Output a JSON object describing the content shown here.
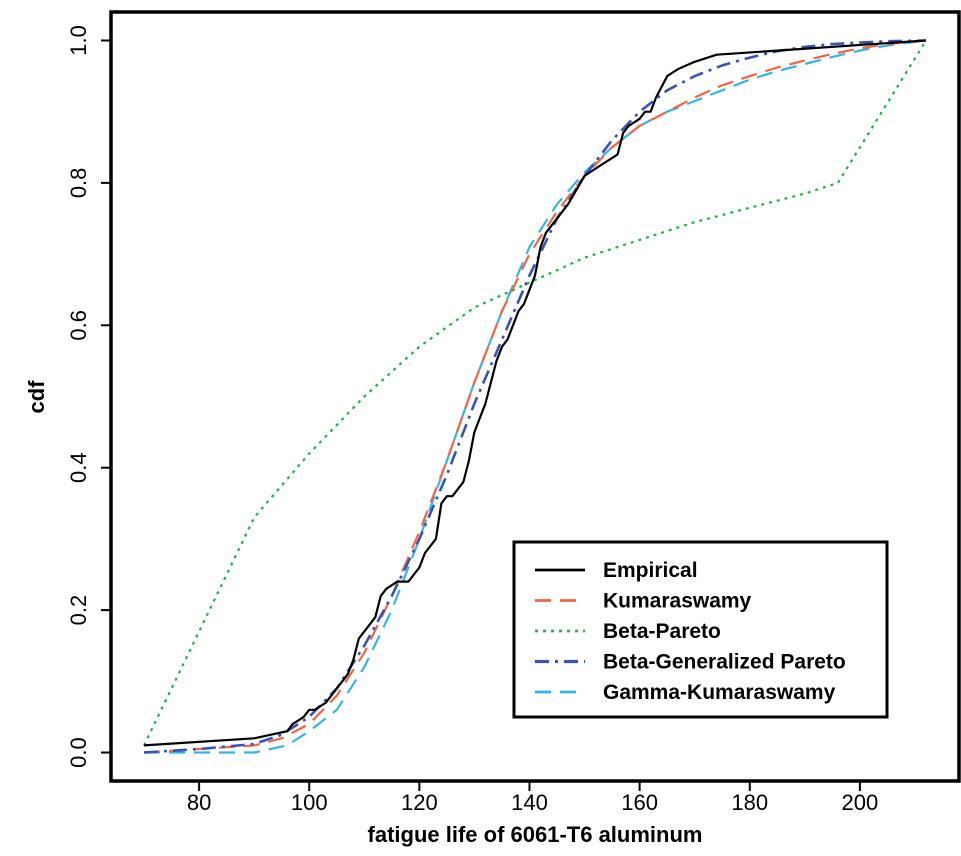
{
  "chart_data": {
    "type": "line",
    "title": "",
    "xlabel": "fatigue life of 6061-T6 aluminum",
    "ylabel": "cdf",
    "xlim": [
      64,
      218
    ],
    "ylim": [
      -0.04,
      1.04
    ],
    "x_ticks": [
      80,
      100,
      120,
      140,
      160,
      180,
      200
    ],
    "y_ticks": [
      0.0,
      0.2,
      0.4,
      0.6,
      0.8,
      1.0
    ],
    "y_tick_labels": [
      "0.0",
      "0.2",
      "0.4",
      "0.6",
      "0.8",
      "1.0"
    ],
    "grid": false,
    "legend_position": "bottom-right",
    "series": [
      {
        "name": "Empirical",
        "color": "#000000",
        "dash": "solid",
        "x": [
          70,
          90,
          96,
          97,
          99,
          100,
          101,
          103,
          104,
          105,
          107,
          108,
          109,
          112,
          113,
          114,
          116,
          118,
          119,
          120,
          121,
          122,
          123,
          124,
          125,
          126,
          127,
          128,
          129,
          130,
          131,
          132,
          133,
          134,
          135,
          136,
          137,
          138,
          139,
          140,
          141,
          142,
          143,
          145,
          147,
          150,
          152,
          154,
          156,
          157,
          158,
          160,
          161,
          162,
          163,
          165,
          167,
          170,
          174,
          212
        ],
        "y": [
          0.01,
          0.02,
          0.03,
          0.04,
          0.05,
          0.06,
          0.06,
          0.07,
          0.08,
          0.09,
          0.11,
          0.13,
          0.16,
          0.19,
          0.22,
          0.23,
          0.24,
          0.24,
          0.25,
          0.26,
          0.28,
          0.29,
          0.3,
          0.35,
          0.36,
          0.36,
          0.37,
          0.38,
          0.41,
          0.45,
          0.47,
          0.49,
          0.52,
          0.55,
          0.57,
          0.58,
          0.6,
          0.62,
          0.63,
          0.65,
          0.67,
          0.71,
          0.73,
          0.75,
          0.77,
          0.81,
          0.82,
          0.83,
          0.84,
          0.87,
          0.88,
          0.89,
          0.9,
          0.9,
          0.92,
          0.95,
          0.96,
          0.97,
          0.98,
          1.0
        ]
      },
      {
        "name": "Kumaraswamy",
        "color": "#f26544",
        "dash": "long-dash",
        "x": [
          70,
          80,
          90,
          95,
          100,
          105,
          110,
          115,
          120,
          125,
          130,
          135,
          140,
          145,
          150,
          155,
          160,
          165,
          170,
          175,
          180,
          185,
          190,
          195,
          200,
          205,
          212
        ],
        "y": [
          0.0,
          0.005,
          0.01,
          0.02,
          0.04,
          0.08,
          0.14,
          0.22,
          0.31,
          0.41,
          0.52,
          0.62,
          0.7,
          0.76,
          0.81,
          0.85,
          0.88,
          0.9,
          0.92,
          0.937,
          0.95,
          0.962,
          0.972,
          0.981,
          0.989,
          0.995,
          1.0
        ]
      },
      {
        "name": "Beta-Pareto",
        "color": "#22b14c",
        "dash": "dotted",
        "x": [
          70,
          90,
          100,
          110,
          120,
          130,
          140,
          150,
          160,
          170,
          180,
          190,
          196,
          212
        ],
        "y": [
          0.01,
          0.33,
          0.42,
          0.5,
          0.57,
          0.625,
          0.66,
          0.695,
          0.72,
          0.745,
          0.765,
          0.785,
          0.8,
          1.0
        ]
      },
      {
        "name": "Beta-Generalized Pareto",
        "color": "#3a53b5",
        "dash": "dash-dot",
        "x": [
          70,
          80,
          90,
          95,
          100,
          105,
          110,
          115,
          120,
          125,
          130,
          135,
          140,
          145,
          150,
          155,
          160,
          165,
          170,
          175,
          180,
          185,
          190,
          195,
          200,
          205,
          212
        ],
        "y": [
          0.0,
          0.005,
          0.012,
          0.025,
          0.05,
          0.09,
          0.15,
          0.22,
          0.3,
          0.39,
          0.49,
          0.58,
          0.67,
          0.75,
          0.81,
          0.86,
          0.9,
          0.93,
          0.95,
          0.965,
          0.976,
          0.985,
          0.991,
          0.995,
          0.997,
          0.999,
          1.0
        ]
      },
      {
        "name": "Gamma-Kumaraswamy",
        "color": "#35b5e5",
        "dash": "long-dash",
        "x": [
          70,
          80,
          90,
          96,
          100,
          105,
          110,
          115,
          120,
          125,
          130,
          135,
          140,
          145,
          150,
          155,
          160,
          165,
          170,
          175,
          180,
          185,
          190,
          195,
          200,
          205,
          212
        ],
        "y": [
          0.0,
          0.0,
          0.0,
          0.01,
          0.03,
          0.06,
          0.12,
          0.2,
          0.3,
          0.41,
          0.52,
          0.62,
          0.71,
          0.77,
          0.815,
          0.85,
          0.88,
          0.9,
          0.915,
          0.93,
          0.945,
          0.957,
          0.967,
          0.977,
          0.986,
          0.993,
          1.0
        ]
      }
    ]
  }
}
